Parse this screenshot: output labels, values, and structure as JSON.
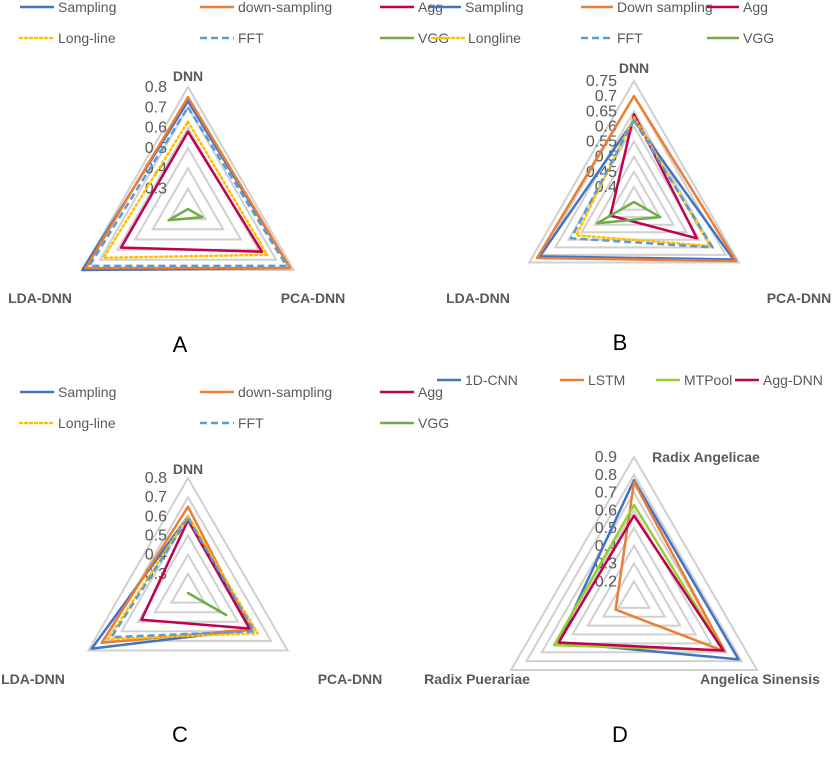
{
  "colors": {
    "grid": "#D0D0D0",
    "text": "#595959"
  },
  "chart_data": [
    {
      "panel": "A",
      "type": "radar",
      "axes": [
        "DNN",
        "PCA-DNN",
        "LDA-DNN"
      ],
      "ticks": [
        "0.3",
        "0.4",
        "0.5",
        "0.6",
        "0.7",
        "0.8"
      ],
      "range": [
        0.2,
        0.8
      ],
      "series": [
        {
          "name": "Sampling",
          "color": "#4472C4",
          "dash": "solid",
          "values": [
            0.73,
            0.78,
            0.8
          ]
        },
        {
          "name": "down-sampling",
          "color": "#ED7D31",
          "dash": "solid",
          "values": [
            0.75,
            0.78,
            0.78
          ]
        },
        {
          "name": "Agg",
          "color": "#C00050",
          "dash": "solid",
          "values": [
            0.58,
            0.62,
            0.58
          ]
        },
        {
          "name": "Long-line",
          "color": "#FFC000",
          "dash": "dotted",
          "values": [
            0.63,
            0.65,
            0.68
          ]
        },
        {
          "name": "FFT",
          "color": "#5B9BD5",
          "dash": "dashed",
          "values": [
            0.7,
            0.76,
            0.76
          ]
        },
        {
          "name": "VGG",
          "color": "#70AD47",
          "dash": "solid",
          "values": [
            0.2,
            0.28,
            0.31
          ]
        }
      ]
    },
    {
      "panel": "B",
      "type": "radar",
      "axes": [
        "DNN",
        "PCA-DNN",
        "LDA-DNN"
      ],
      "ticks": [
        "0.4",
        "0.45",
        "0.5",
        "0.55",
        "0.6",
        "0.65",
        "0.7",
        "0.75"
      ],
      "range": [
        0.35,
        0.75
      ],
      "series": [
        {
          "name": "Sampling",
          "color": "#4472C4",
          "dash": "solid",
          "values": [
            0.62,
            0.73,
            0.71
          ]
        },
        {
          "name": "Down sampling",
          "color": "#ED7D31",
          "dash": "solid",
          "values": [
            0.7,
            0.74,
            0.72
          ]
        },
        {
          "name": "Agg",
          "color": "#C00050",
          "dash": "solid",
          "values": [
            0.64,
            0.59,
            0.44
          ]
        },
        {
          "name": "Longline",
          "color": "#FFC000",
          "dash": "dotted",
          "values": [
            0.63,
            0.64,
            0.57
          ]
        },
        {
          "name": "FFT",
          "color": "#5B9BD5",
          "dash": "dashed",
          "values": [
            0.62,
            0.65,
            0.59
          ]
        },
        {
          "name": "VGG",
          "color": "#70AD47",
          "dash": "solid",
          "values": [
            0.35,
            0.45,
            0.49
          ]
        }
      ]
    },
    {
      "panel": "C",
      "type": "radar",
      "axes": [
        "DNN",
        "PCA-DNN",
        "LDA-DNN"
      ],
      "ticks": [
        "0.3",
        "0.4",
        "0.5",
        "0.6",
        "0.7",
        "0.8"
      ],
      "range": [
        0.2,
        0.8
      ],
      "series": [
        {
          "name": "Sampling",
          "color": "#4472C4",
          "dash": "solid",
          "values": [
            0.6,
            0.58,
            0.78
          ]
        },
        {
          "name": "down-sampling",
          "color": "#ED7D31",
          "dash": "solid",
          "values": [
            0.65,
            0.58,
            0.72
          ]
        },
        {
          "name": "Agg",
          "color": "#C00050",
          "dash": "solid",
          "values": [
            0.58,
            0.57,
            0.48
          ]
        },
        {
          "name": "Long-line",
          "color": "#FFC000",
          "dash": "dotted",
          "values": [
            0.6,
            0.62,
            0.68
          ]
        },
        {
          "name": "FFT",
          "color": "#5B9BD5",
          "dash": "dashed",
          "values": [
            0.59,
            0.6,
            0.66
          ]
        },
        {
          "name": "VGG",
          "color": "#70AD47",
          "dash": "solid",
          "values": [
            0.2,
            0.43,
            0.2
          ]
        }
      ]
    },
    {
      "panel": "D",
      "type": "radar",
      "axes": [
        "Radix Angelicae",
        "Angelica Sinensis",
        "Radix Puerariae"
      ],
      "ticks": [
        "0.2",
        "0.3",
        "0.4",
        "0.5",
        "0.6",
        "0.7",
        "0.8",
        "0.9"
      ],
      "range": [
        0.1,
        0.9
      ],
      "series": [
        {
          "name": "1D-CNN",
          "color": "#4472C4",
          "dash": "solid",
          "values": [
            0.77,
            0.78,
            0.59
          ]
        },
        {
          "name": "LSTM",
          "color": "#ED7D31",
          "dash": "solid",
          "values": [
            0.76,
            0.69,
            0.22
          ]
        },
        {
          "name": "MTPool",
          "color": "#9ACD32",
          "dash": "solid",
          "values": [
            0.63,
            0.68,
            0.62
          ]
        },
        {
          "name": "Agg-DNN",
          "color": "#C00050",
          "dash": "solid",
          "values": [
            0.57,
            0.68,
            0.59
          ]
        }
      ]
    }
  ]
}
